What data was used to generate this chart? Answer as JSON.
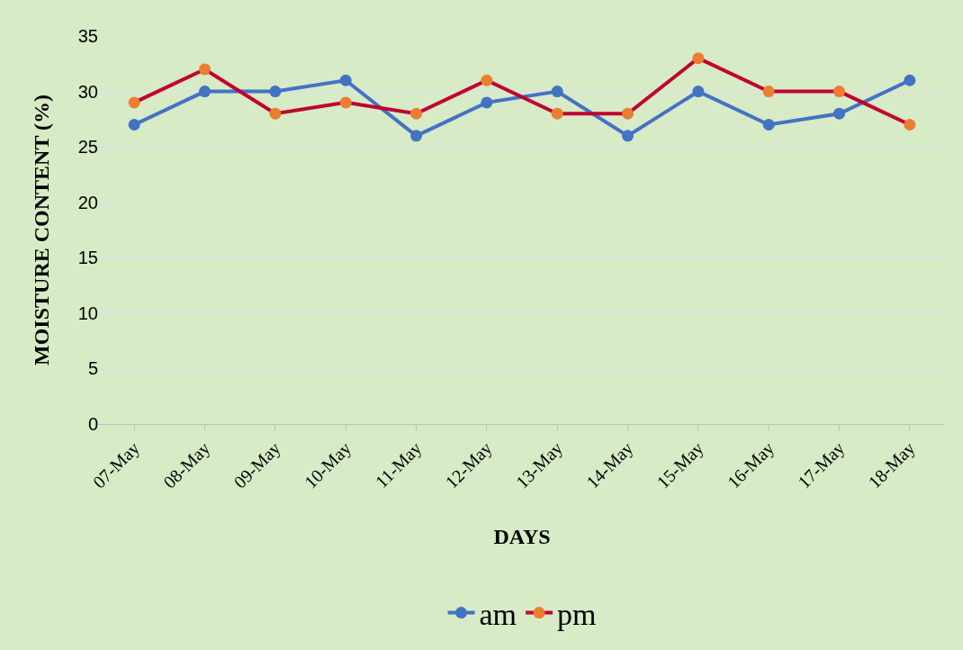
{
  "chart_data": {
    "type": "line",
    "xlabel": "DAYS",
    "ylabel": "MOISTURE CONTENT (%)",
    "categories": [
      "07-May",
      "08-May",
      "09-May",
      "10-May",
      "11-May",
      "12-May",
      "13-May",
      "14-May",
      "15-May",
      "16-May",
      "17-May",
      "18-May"
    ],
    "series": [
      {
        "name": "am",
        "color": "#4472c4",
        "values": [
          27,
          30,
          30,
          31,
          26,
          29,
          30,
          26,
          30,
          27,
          28,
          31
        ]
      },
      {
        "name": "pm",
        "color": "#c00030",
        "colors": [
          "#ed7d31",
          "#ed7d31",
          "#ed7d31",
          "#ed7d31",
          "#ed7d31",
          "#ed7d31",
          "#ed7d31",
          "#ed7d31",
          "#ed7d31",
          "#ed7d31",
          "#ed7d31",
          "#ed7d31"
        ],
        "values": [
          29,
          32,
          28,
          29,
          28,
          31,
          28,
          28,
          33,
          30,
          30,
          27
        ]
      }
    ],
    "ylim": [
      0,
      35
    ],
    "yticks": [
      0,
      5,
      10,
      15,
      20,
      25,
      30,
      35
    ],
    "grid": "y",
    "legend": "bottom",
    "marker": "circle",
    "line_style": "solid"
  }
}
